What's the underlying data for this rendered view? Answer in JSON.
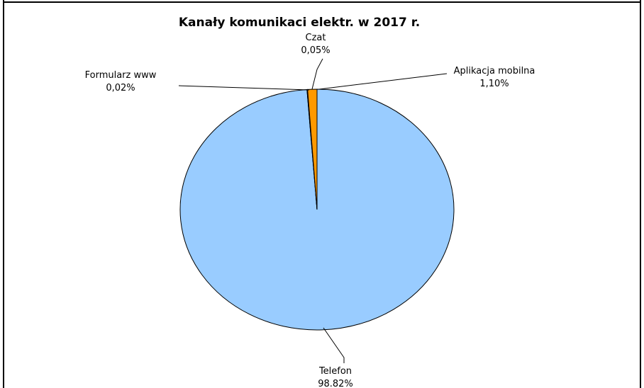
{
  "chart_data": {
    "type": "pie",
    "title": "Kanały komunikaci elektr. w 2017 r.",
    "slices": [
      {
        "name": "Telefon",
        "value": 98.82,
        "label": "98.82%",
        "color": "#99CCFF"
      },
      {
        "name": "Formularz www",
        "value": 0.02,
        "label": "0,02%",
        "color": "#99CCFF"
      },
      {
        "name": "Czat",
        "value": 0.05,
        "label": "0,05%",
        "color": "#99CCFF"
      },
      {
        "name": "Aplikacja mobilna",
        "value": 1.1,
        "label": "1,10%",
        "color": "#FF9900"
      }
    ],
    "legend": false
  }
}
